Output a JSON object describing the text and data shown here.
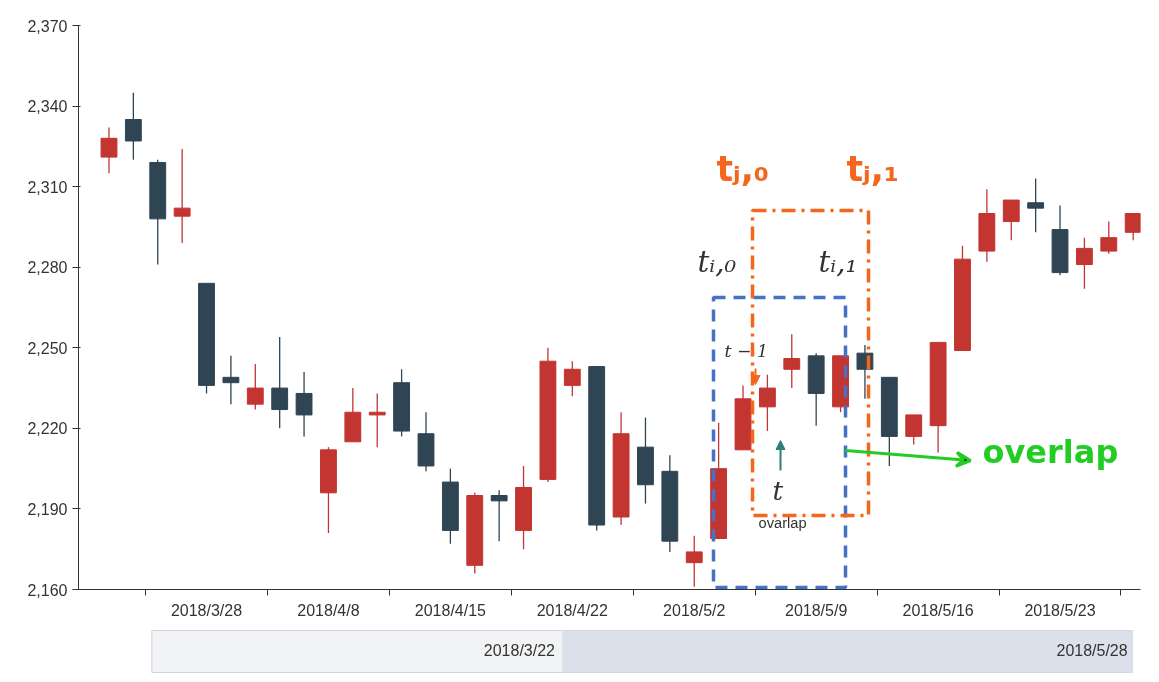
{
  "chart_data": {
    "type": "candlestick",
    "categories": [
      null,
      null,
      null,
      null,
      "2018/3/28",
      null,
      null,
      null,
      null,
      "2018/4/8",
      null,
      null,
      null,
      null,
      "2018/4/15",
      null,
      null,
      null,
      null,
      "2018/4/22",
      null,
      null,
      null,
      null,
      "2018/5/2",
      null,
      null,
      null,
      null,
      "2018/5/9",
      null,
      null,
      null,
      null,
      "2018/5/16",
      null,
      null,
      null,
      null,
      "2018/5/23",
      null,
      null,
      null
    ],
    "ohlc": [
      [
        2321,
        2332,
        2315,
        2328
      ],
      [
        2335,
        2345,
        2320,
        2327
      ],
      [
        2319,
        2320,
        2281,
        2298
      ],
      [
        2299,
        2324,
        2289,
        2302
      ],
      [
        2274,
        2274,
        2233,
        2236
      ],
      [
        2239,
        2247,
        2229,
        2237
      ],
      [
        2229,
        2244,
        2227,
        2235
      ],
      [
        2235,
        2254,
        2220,
        2227
      ],
      [
        2233,
        2241,
        2217,
        2225
      ],
      [
        2196,
        2213,
        2181,
        2212
      ],
      [
        2215,
        2235,
        2215,
        2226
      ],
      [
        2225,
        2233,
        2213,
        2226
      ],
      [
        2237,
        2242,
        2217,
        2219
      ],
      [
        2218,
        2226,
        2204,
        2206
      ],
      [
        2200,
        2205,
        2177,
        2182
      ],
      [
        2169,
        2196,
        2166,
        2195
      ],
      [
        2195,
        2197,
        2178,
        2193
      ],
      [
        2182,
        2206,
        2175,
        2198
      ],
      [
        2201,
        2250,
        2200,
        2245
      ],
      [
        2236,
        2245,
        2232,
        2242
      ],
      [
        2243,
        2243,
        2182,
        2184
      ],
      [
        2187,
        2226,
        2184,
        2218
      ],
      [
        2213,
        2224,
        2192,
        2199
      ],
      [
        2204,
        2210,
        2174,
        2178
      ],
      [
        2170,
        2180,
        2161,
        2174
      ],
      [
        2179,
        2222,
        2179,
        2205
      ],
      [
        2212,
        2236,
        2212,
        2231
      ],
      [
        2228,
        2240,
        2219,
        2235
      ],
      [
        2242,
        2255,
        2235,
        2246
      ],
      [
        2247,
        2248,
        2221,
        2233
      ],
      [
        2228,
        2247,
        2226,
        2247
      ],
      [
        2248,
        2251,
        2231,
        2242
      ],
      [
        2239,
        2239,
        2206,
        2217
      ],
      [
        2217,
        2225,
        2214,
        2225
      ],
      [
        2221,
        2252,
        2211,
        2252
      ],
      [
        2249,
        2288,
        2249,
        2283
      ],
      [
        2286,
        2309,
        2282,
        2300
      ],
      [
        2297,
        2305,
        2290,
        2305
      ],
      [
        2304,
        2313,
        2293,
        2302
      ],
      [
        2294,
        2303,
        2277,
        2278
      ],
      [
        2281,
        2291,
        2272,
        2287
      ],
      [
        2286,
        2297,
        2285,
        2291
      ],
      [
        2293,
        2300,
        2290,
        2300
      ]
    ],
    "colors": [
      "#c23531",
      "#2f4554",
      "#2f4554",
      "#c23531",
      "#2f4554",
      "#2f4554",
      "#c23531",
      "#2f4554",
      "#2f4554",
      "#c23531",
      "#c23531",
      "#c23531",
      "#2f4554",
      "#2f4554",
      "#2f4554",
      "#c23531",
      "#2f4554",
      "#c23531",
      "#c23531",
      "#c23531",
      "#2f4554",
      "#c23531",
      "#2f4554",
      "#2f4554",
      "#c23531",
      "#c23531",
      "#c23531",
      "#c23531",
      "#c23531",
      "#2f4554",
      "#c23531",
      "#2f4554",
      "#2f4554",
      "#c23531",
      "#c23531",
      "#c23531",
      "#c23531",
      "#c23531",
      "#2f4554",
      "#2f4554",
      "#c23531",
      "#c23531",
      "#c23531"
    ],
    "ylim": [
      2160,
      2370
    ],
    "yticks": [
      {
        "value": 2160,
        "label": "2,160"
      },
      {
        "value": 2190,
        "label": "2,190"
      },
      {
        "value": 2220,
        "label": "2,220"
      },
      {
        "value": 2250,
        "label": "2,250"
      },
      {
        "value": 2280,
        "label": "2,280"
      },
      {
        "value": 2310,
        "label": "2,310"
      },
      {
        "value": 2340,
        "label": "2,340"
      },
      {
        "value": 2370,
        "label": "2,370"
      }
    ],
    "grid": false,
    "annotations": [
      "tᵢ,₀",
      "tᵢ,₁",
      "tⱼ,₀",
      "tⱼ,₁",
      "t − 1",
      "t",
      "overlap",
      "ovarlap",
      "2018/3/22",
      "2018/5/28"
    ]
  }
}
